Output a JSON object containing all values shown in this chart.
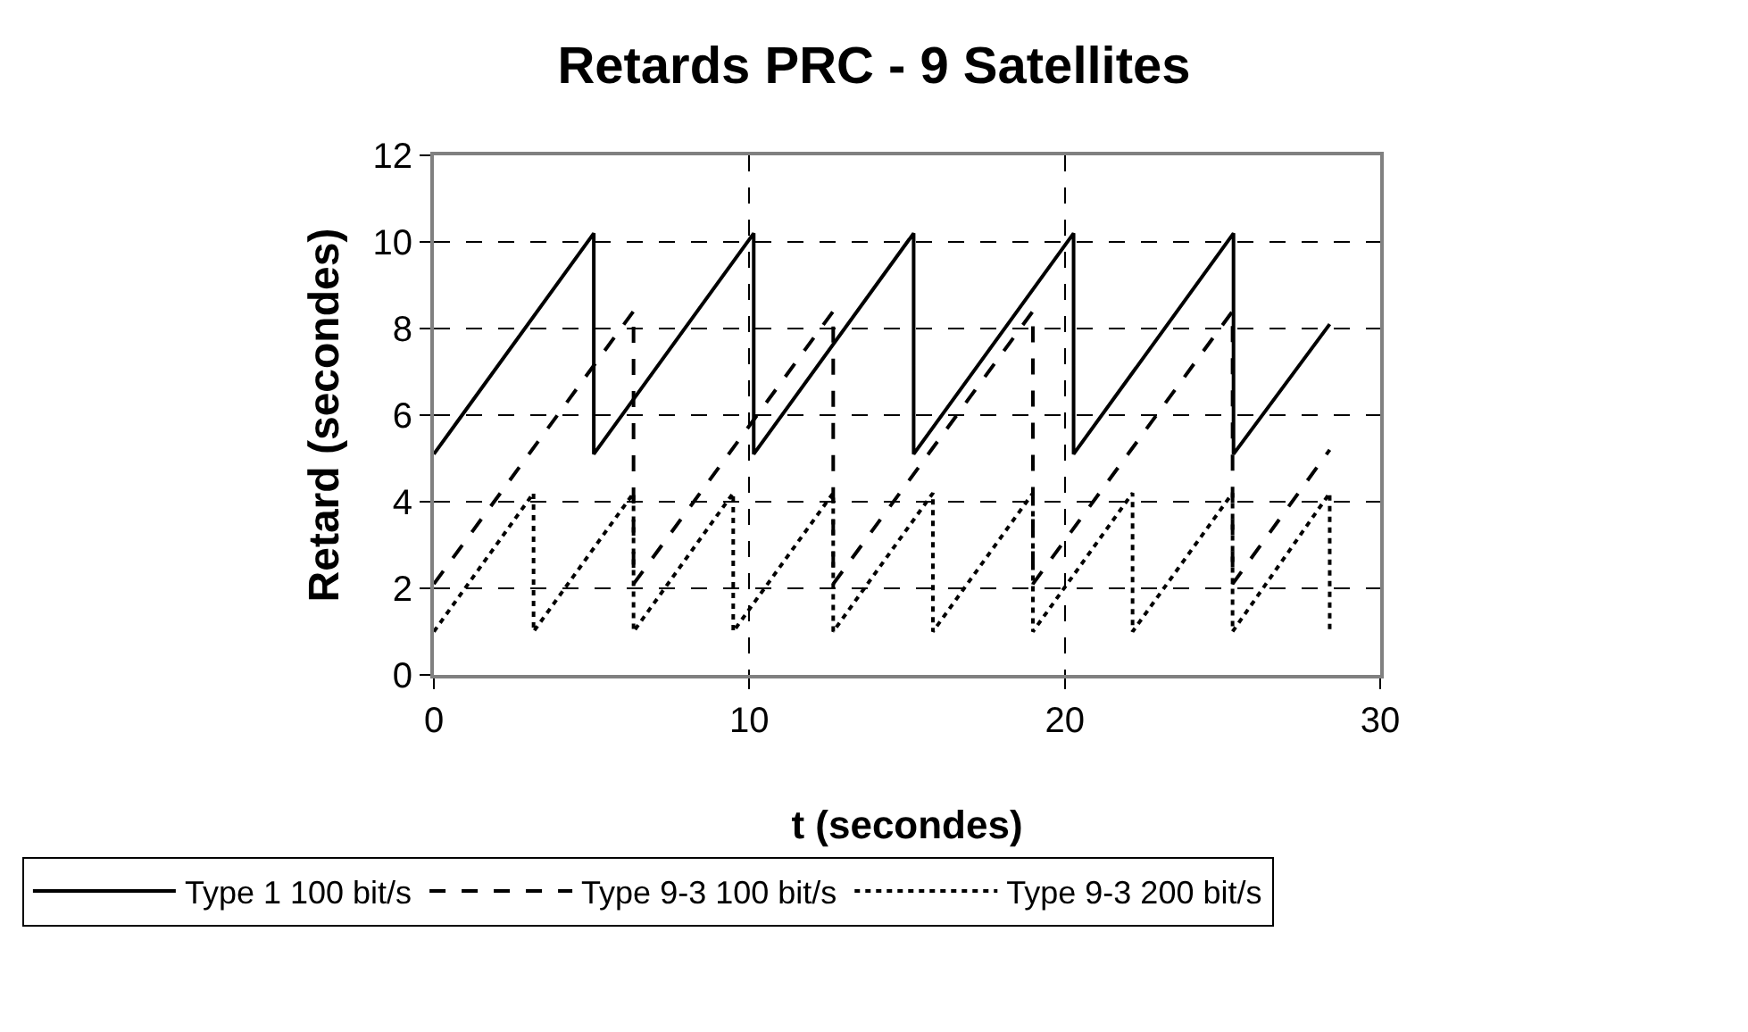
{
  "chart_data": {
    "type": "line",
    "title": "Retards PRC - 9 Satellites",
    "xlabel": "t (secondes)",
    "ylabel": "Retard (secondes)",
    "xlim": [
      0,
      30
    ],
    "xticks": [
      0,
      10,
      20,
      30
    ],
    "ylim": [
      0,
      12
    ],
    "yticks": [
      0,
      2,
      4,
      6,
      8,
      10,
      12
    ],
    "grid": true,
    "legend": "bottom",
    "marker": "none",
    "series": [
      {
        "name": "Type 1 100 bit/s",
        "color": "#000000",
        "line_style": "solid",
        "x": [
          0,
          5.07,
          5.07,
          10.14,
          10.14,
          15.21,
          15.21,
          20.28,
          20.28,
          25.35,
          25.35,
          28.4
        ],
        "values": [
          5.1,
          10.2,
          5.1,
          10.2,
          5.1,
          10.2,
          5.1,
          10.2,
          5.1,
          10.2,
          5.1,
          8.1
        ]
      },
      {
        "name": "Type 9-3 100 bit/s",
        "color": "#000000",
        "line_style": "dashed",
        "x": [
          0,
          6.33,
          6.33,
          12.66,
          12.66,
          18.99,
          18.99,
          25.32,
          25.32,
          28.4
        ],
        "values": [
          2.1,
          8.4,
          2.1,
          8.4,
          2.1,
          8.4,
          2.1,
          8.4,
          2.1,
          5.2
        ]
      },
      {
        "name": "Type 9-3 200 bit/s",
        "color": "#000000",
        "line_style": "dotted",
        "x": [
          0,
          3.16,
          3.16,
          6.33,
          6.33,
          9.49,
          9.49,
          12.66,
          12.66,
          15.82,
          15.82,
          18.99,
          18.99,
          22.15,
          22.15,
          25.32,
          25.32,
          28.4,
          28.4
        ],
        "values": [
          1.0,
          4.2,
          1.0,
          4.2,
          1.0,
          4.2,
          1.0,
          4.2,
          1.0,
          4.2,
          1.0,
          4.2,
          1.0,
          4.2,
          1.0,
          4.2,
          1.0,
          4.2,
          1.0
        ]
      }
    ]
  }
}
